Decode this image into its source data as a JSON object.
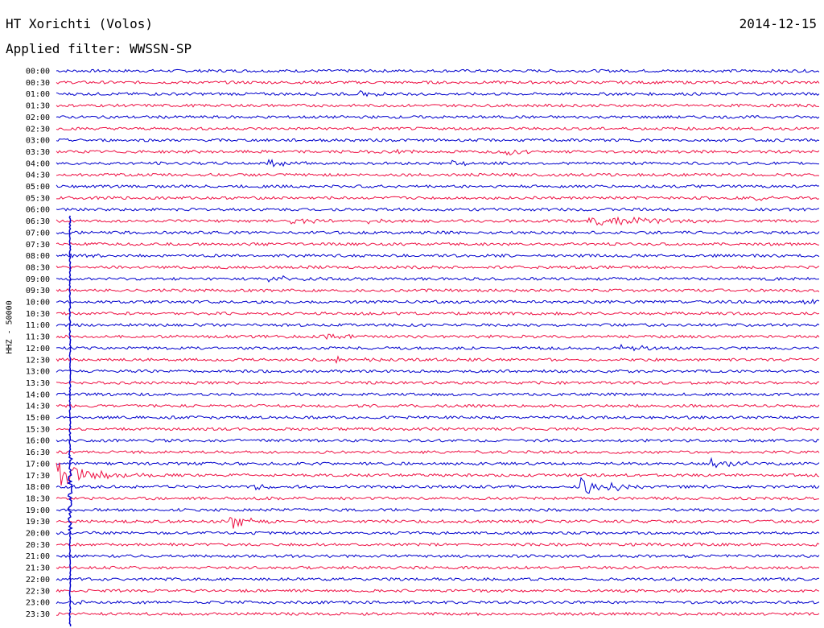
{
  "header": {
    "title": "HT Xorichti (Volos)",
    "date": "2014-12-15",
    "filter": "Applied filter: WWSSN-SP"
  },
  "chart_data": {
    "type": "line",
    "title": "HT Xorichti (Volos)",
    "subtitle": "Applied filter: WWSSN-SP",
    "ylabel": "HHZ - 50000",
    "xlabel": "",
    "grid": false,
    "colors": {
      "even": "#0000cc",
      "odd": "#ee1144"
    },
    "trace_labels": [
      "00:00",
      "00:30",
      "01:00",
      "01:30",
      "02:00",
      "02:30",
      "03:00",
      "03:30",
      "04:00",
      "04:30",
      "05:00",
      "05:30",
      "06:00",
      "06:30",
      "07:00",
      "07:30",
      "08:00",
      "08:30",
      "09:00",
      "09:30",
      "10:00",
      "10:30",
      "11:00",
      "11:30",
      "12:00",
      "12:30",
      "13:00",
      "13:30",
      "14:00",
      "14:30",
      "15:00",
      "15:30",
      "16:00",
      "16:30",
      "17:00",
      "17:30",
      "18:00",
      "18:30",
      "19:00",
      "19:30",
      "20:00",
      "20:30",
      "21:00",
      "21:30",
      "22:00",
      "22:30",
      "23:00",
      "23:30"
    ],
    "events": [
      {
        "trace": 2,
        "x": 0.4,
        "amplitude": 0.5,
        "duration": 0.03
      },
      {
        "trace": 7,
        "x": 0.45,
        "amplitude": 0.6,
        "duration": 0.02
      },
      {
        "trace": 7,
        "x": 0.59,
        "amplitude": 0.6,
        "duration": 0.03
      },
      {
        "trace": 8,
        "x": 0.28,
        "amplitude": 1.2,
        "duration": 0.02
      },
      {
        "trace": 8,
        "x": 0.52,
        "amplitude": 0.8,
        "duration": 0.02
      },
      {
        "trace": 11,
        "x": 0.92,
        "amplitude": 0.5,
        "duration": 0.02
      },
      {
        "trace": 13,
        "x": 0.7,
        "amplitude": 1.4,
        "duration": 0.08
      },
      {
        "trace": 13,
        "x": 0.31,
        "amplitude": 0.5,
        "duration": 0.05
      },
      {
        "trace": 13,
        "x": 0.4,
        "amplitude": 0.4,
        "duration": 0.04
      },
      {
        "trace": 16,
        "x": 0.02,
        "amplitude": 0.7,
        "duration": 0.03
      },
      {
        "trace": 18,
        "x": 0.28,
        "amplitude": 0.9,
        "duration": 0.02
      },
      {
        "trace": 18,
        "x": 0.3,
        "amplitude": 0.7,
        "duration": 0.03
      },
      {
        "trace": 20,
        "x": 0.98,
        "amplitude": 0.5,
        "duration": 0.03
      },
      {
        "trace": 23,
        "x": 0.35,
        "amplitude": 0.8,
        "duration": 0.03
      },
      {
        "trace": 24,
        "x": 0.74,
        "amplitude": 0.8,
        "duration": 0.03
      },
      {
        "trace": 25,
        "x": 0.37,
        "amplitude": 0.8,
        "duration": 0.03
      },
      {
        "trace": 34,
        "x": 0.86,
        "amplitude": 1.1,
        "duration": 0.04
      },
      {
        "trace": 35,
        "x": 0.0,
        "amplitude": 3.5,
        "duration": 0.05
      },
      {
        "trace": 36,
        "x": 0.69,
        "amplitude": 2.0,
        "duration": 0.04
      },
      {
        "trace": 36,
        "x": 0.26,
        "amplitude": 0.5,
        "duration": 0.05
      },
      {
        "trace": 39,
        "x": 0.23,
        "amplitude": 2.0,
        "duration": 0.02
      },
      {
        "trace": 46,
        "x": 0.02,
        "amplitude": 0.4,
        "duration": 0.04
      }
    ]
  }
}
